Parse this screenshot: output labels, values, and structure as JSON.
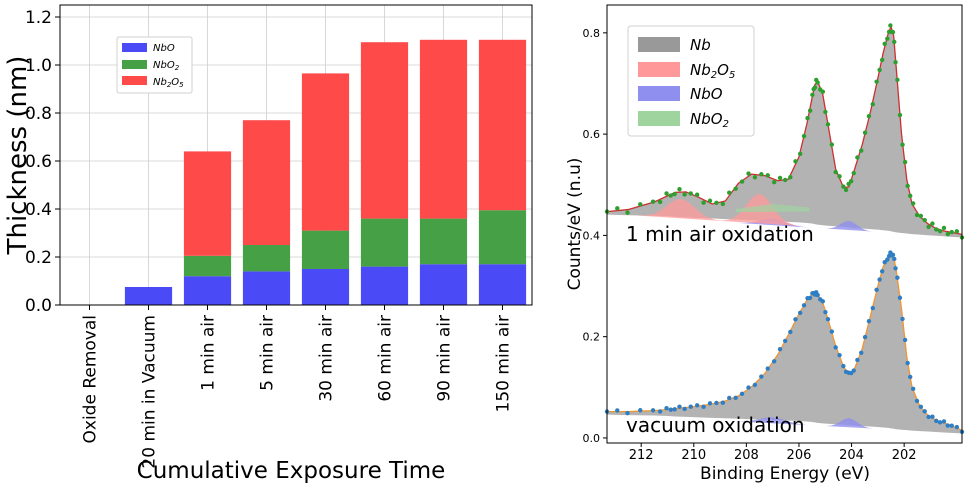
{
  "chart_data": [
    {
      "type": "bar",
      "stacked": true,
      "title": "",
      "xlabel": "Cumulative Exposure Time",
      "ylabel": "Thickness (nm)",
      "ylim": [
        0,
        1.25
      ],
      "yticks": [
        "0.0",
        "0.2",
        "0.4",
        "0.6",
        "0.8",
        "1.0",
        "1.2"
      ],
      "grid": true,
      "legend_position": "upper-left",
      "categories": [
        "Oxide Removal",
        "20 min in Vacuum",
        "1 min air",
        "5 min air",
        "30 min air",
        "60 min air",
        "90 min air",
        "150 min air"
      ],
      "series": [
        {
          "name": "NbO",
          "color": "#4a4af7",
          "values": [
            0.0,
            0.075,
            0.12,
            0.14,
            0.15,
            0.16,
            0.17,
            0.17
          ]
        },
        {
          "name": "NbO2",
          "color": "#46a146",
          "values": [
            0.0,
            0.0,
            0.085,
            0.11,
            0.16,
            0.2,
            0.19,
            0.225
          ]
        },
        {
          "name": "Nb2O5",
          "color": "#ff4a4a",
          "values": [
            0.0,
            0.0,
            0.435,
            0.52,
            0.655,
            0.735,
            0.745,
            0.71
          ]
        }
      ]
    },
    {
      "type": "line",
      "title": "",
      "xlabel": "Binding Energy (eV)",
      "ylabel": "Counts/eV (n.u)",
      "xlim": [
        213.3,
        199.8
      ],
      "ylim": [
        -0.01,
        0.855
      ],
      "xticks": [
        "212",
        "210",
        "208",
        "206",
        "204",
        "202"
      ],
      "yticks": [
        "0.0",
        "0.2",
        "0.4",
        "0.6",
        "0.8"
      ],
      "legend_position": "upper-left",
      "legend": [
        {
          "name": "Nb",
          "color": "#999999"
        },
        {
          "name": "Nb2O5",
          "color": "#ff9999"
        },
        {
          "name": "NbO",
          "color": "#8f8fef"
        },
        {
          "name": "NbO2",
          "color": "#9fd49f"
        }
      ],
      "annotations": [
        "1 min air oxidation",
        "vacuum oxidation"
      ],
      "x": [
        213.3,
        212.5,
        211.5,
        211.0,
        210.7,
        210.3,
        209.8,
        209.3,
        208.8,
        208.3,
        207.8,
        207.3,
        206.8,
        206.4,
        206.0,
        205.7,
        205.5,
        205.4,
        205.3,
        205.1,
        204.9,
        204.6,
        204.3,
        204.1,
        203.9,
        203.6,
        203.3,
        203.0,
        202.8,
        202.6,
        202.5,
        202.4,
        202.3,
        202.1,
        201.9,
        201.7,
        201.4,
        201.1,
        200.8,
        200.5,
        200.2,
        199.8
      ],
      "series": [
        {
          "name": "1 min air oxidation",
          "marker_color": "#2e9e2e",
          "fit_color": "#cc3030",
          "values": [
            0.447,
            0.451,
            0.466,
            0.478,
            0.485,
            0.486,
            0.475,
            0.462,
            0.468,
            0.503,
            0.521,
            0.518,
            0.508,
            0.511,
            0.555,
            0.62,
            0.672,
            0.697,
            0.705,
            0.68,
            0.62,
            0.53,
            0.494,
            0.496,
            0.528,
            0.578,
            0.64,
            0.71,
            0.76,
            0.8,
            0.812,
            0.795,
            0.73,
            0.6,
            0.51,
            0.462,
            0.437,
            0.423,
            0.414,
            0.409,
            0.406,
            0.402
          ]
        },
        {
          "name": "vacuum oxidation",
          "marker_color": "#2f7ec4",
          "fit_color": "#f2952f",
          "values": [
            0.052,
            0.052,
            0.054,
            0.056,
            0.058,
            0.06,
            0.063,
            0.067,
            0.073,
            0.083,
            0.101,
            0.127,
            0.165,
            0.204,
            0.245,
            0.272,
            0.284,
            0.286,
            0.284,
            0.268,
            0.235,
            0.181,
            0.14,
            0.125,
            0.135,
            0.175,
            0.237,
            0.3,
            0.338,
            0.358,
            0.365,
            0.359,
            0.33,
            0.255,
            0.16,
            0.1,
            0.062,
            0.045,
            0.035,
            0.03,
            0.024,
            0.015
          ]
        }
      ]
    }
  ]
}
